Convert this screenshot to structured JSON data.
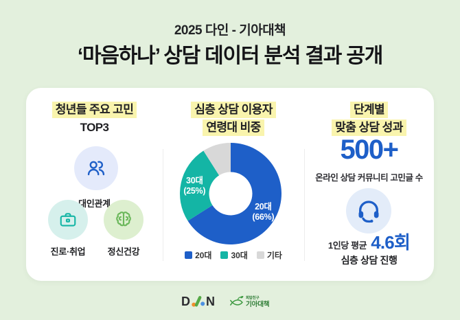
{
  "header": {
    "subtitle": "2025 다인 - 기아대책",
    "title": "‘마음하나’ 상담 데이터 분석 결과 공개"
  },
  "colors": {
    "background": "#e3f0dd",
    "card": "#ffffff",
    "highlight_yellow": "#f9f4ad",
    "accent_blue": "#1e5fc8",
    "accent_teal": "#14b5a5",
    "accent_green": "#6cb85c",
    "slice_gray": "#d8d8d8"
  },
  "panels": {
    "concerns": {
      "heading_line1": "청년들 주요 고민",
      "heading_line2": "TOP3",
      "items": [
        {
          "label": "대인관계"
        },
        {
          "label": "진로·취업"
        },
        {
          "label": "정신건강"
        }
      ]
    },
    "ages": {
      "heading_line1": "심층 상담 이용자",
      "heading_line2": "연령대 비중"
    },
    "results": {
      "heading_line1": "단계별",
      "heading_line2": "맞춤 상담 성과",
      "stat_value": "500+",
      "stat_caption": "온라인 상담 커뮤니티 고민글 수",
      "avg_prefix": "1인당 평균",
      "avg_value": "4.6회",
      "avg_caption": "심층 상담 진행"
    }
  },
  "chart_data": {
    "type": "pie",
    "donut": true,
    "title": "심층 상담 이용자 연령대 비중",
    "categories": [
      "20대",
      "30대",
      "기타"
    ],
    "values": [
      66,
      25,
      9
    ],
    "unit": "%",
    "colors": [
      "#1e5fc8",
      "#14b5a5",
      "#d8d8d8"
    ],
    "slice_labels": [
      [
        "20대",
        "(66%)"
      ],
      [
        "30대",
        "(25%)"
      ],
      []
    ],
    "start_angle_deg": 0,
    "direction": "clockwise",
    "legend_position": "bottom"
  },
  "footer": {
    "dain": {
      "d": "D",
      "n": "N"
    },
    "kfhi": {
      "small": "희망친구",
      "big": "기아대책"
    }
  }
}
